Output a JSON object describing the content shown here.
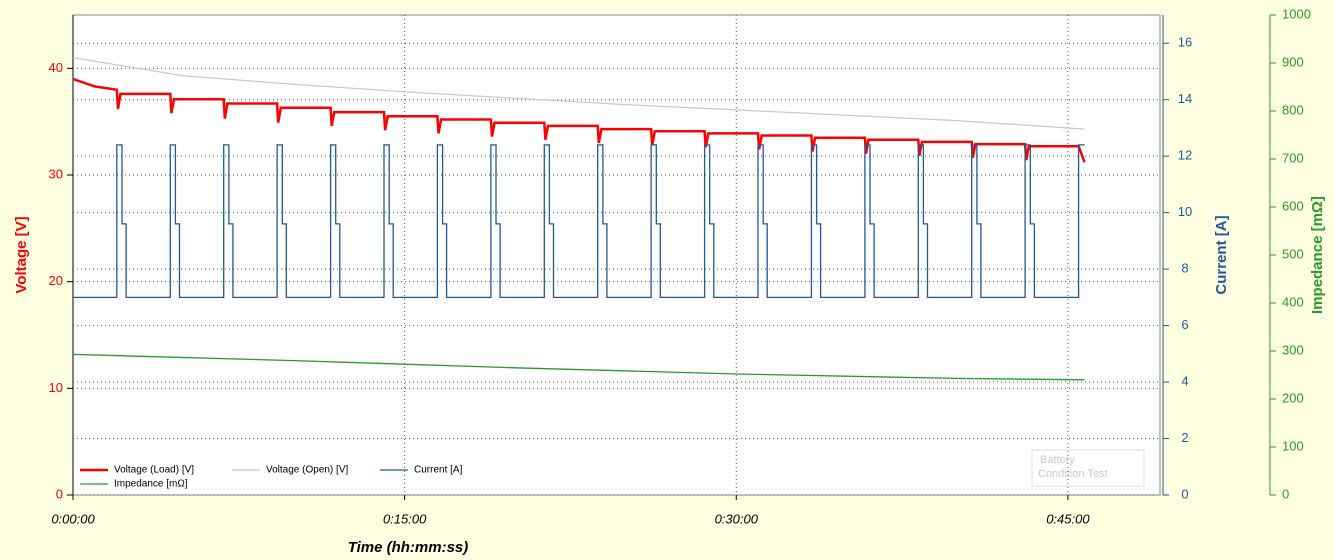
{
  "chart_data": {
    "type": "line",
    "xlabel": "Time (hh:mm:ss)",
    "ylabel": "Voltage [V]",
    "y2label": "Current [A]",
    "y3label": "Impedance [mΩ]",
    "xlim": [
      0,
      2950
    ],
    "xticks": [
      {
        "value": 0,
        "label": "0:00:00"
      },
      {
        "value": 900,
        "label": "0:15:00"
      },
      {
        "value": 1800,
        "label": "0:30:00"
      },
      {
        "value": 2700,
        "label": "0:45:00"
      }
    ],
    "ylim": [
      0,
      45
    ],
    "yticks": [
      0,
      10,
      20,
      30,
      40
    ],
    "y2lim": [
      0,
      17
    ],
    "y2ticks": [
      0,
      2,
      4,
      6,
      8,
      10,
      12,
      14,
      16
    ],
    "y3lim": [
      0,
      1000
    ],
    "y3ticks": [
      0,
      100,
      200,
      300,
      400,
      500,
      600,
      700,
      800,
      900,
      1000
    ],
    "grid": true,
    "legend": "lower left",
    "watermark": [
      "Battery",
      "Condition Test"
    ],
    "series": [
      {
        "name": "Voltage (Load) [V]",
        "color": "#ff0000",
        "x": [
          0,
          60,
          119,
          122,
          129,
          264,
          267,
          274,
          409,
          412,
          419,
          554,
          557,
          564,
          699,
          702,
          709,
          844,
          847,
          854,
          989,
          992,
          999,
          1134,
          1137,
          1144,
          1279,
          1282,
          1289,
          1424,
          1427,
          1434,
          1569,
          1572,
          1579,
          1714,
          1717,
          1724,
          1859,
          1862,
          1869,
          2004,
          2007,
          2014,
          2149,
          2152,
          2159,
          2294,
          2297,
          2304,
          2439,
          2442,
          2449,
          2584,
          2587,
          2594,
          2729,
          2745
        ],
        "values": [
          39,
          38.3,
          38.0,
          36.2,
          37.6,
          37.6,
          35.8,
          37.1,
          37.1,
          35.3,
          36.7,
          36.7,
          34.9,
          36.3,
          36.3,
          34.6,
          35.9,
          35.9,
          34.2,
          35.5,
          35.5,
          33.9,
          35.2,
          35.2,
          33.6,
          34.9,
          34.9,
          33.3,
          34.6,
          34.6,
          33.0,
          34.3,
          34.3,
          32.8,
          34.1,
          34.1,
          32.6,
          33.9,
          33.9,
          32.4,
          33.7,
          33.7,
          32.2,
          33.5,
          33.5,
          32.0,
          33.3,
          33.3,
          31.8,
          33.1,
          33.1,
          31.6,
          32.9,
          32.9,
          31.4,
          32.7,
          32.7,
          31.2
        ]
      },
      {
        "name": "Voltage (Open) [V]",
        "color": "#c8c8c8",
        "x": [
          0,
          300,
          600,
          900,
          1200,
          1500,
          1800,
          2100,
          2400,
          2745
        ],
        "values": [
          41,
          39.3,
          38.5,
          37.8,
          37.2,
          36.6,
          36.1,
          35.6,
          35.1,
          34.3
        ]
      },
      {
        "name": "Current [A]",
        "color": "#1f5a96",
        "axis": "y2",
        "x": [
          0,
          119,
          119,
          133,
          133,
          144,
          144,
          264,
          264,
          278,
          278,
          289,
          289,
          409,
          409,
          423,
          423,
          434,
          434,
          554,
          554,
          568,
          568,
          579,
          579,
          699,
          699,
          713,
          713,
          724,
          724,
          844,
          844,
          858,
          858,
          869,
          869,
          989,
          989,
          1003,
          1003,
          1014,
          1014,
          1134,
          1134,
          1148,
          1148,
          1159,
          1159,
          1279,
          1279,
          1293,
          1293,
          1304,
          1304,
          1424,
          1424,
          1438,
          1438,
          1449,
          1449,
          1569,
          1569,
          1583,
          1583,
          1594,
          1594,
          1714,
          1714,
          1728,
          1728,
          1739,
          1739,
          1859,
          1859,
          1873,
          1873,
          1884,
          1884,
          2004,
          2004,
          2018,
          2018,
          2029,
          2029,
          2149,
          2149,
          2163,
          2163,
          2174,
          2174,
          2294,
          2294,
          2308,
          2308,
          2319,
          2319,
          2439,
          2439,
          2453,
          2453,
          2464,
          2464,
          2584,
          2584,
          2598,
          2598,
          2609,
          2609,
          2729,
          2729,
          2745
        ],
        "values": [
          7,
          7,
          12.4,
          12.4,
          9.6,
          9.6,
          7,
          7,
          12.4,
          12.4,
          9.6,
          9.6,
          7,
          7,
          12.4,
          12.4,
          9.6,
          9.6,
          7,
          7,
          12.4,
          12.4,
          9.6,
          9.6,
          7,
          7,
          12.4,
          12.4,
          9.6,
          9.6,
          7,
          7,
          12.4,
          12.4,
          9.6,
          9.6,
          7,
          7,
          12.4,
          12.4,
          9.6,
          9.6,
          7,
          7,
          12.4,
          12.4,
          9.6,
          9.6,
          7,
          7,
          12.4,
          12.4,
          9.6,
          9.6,
          7,
          7,
          12.4,
          12.4,
          9.6,
          9.6,
          7,
          7,
          12.4,
          12.4,
          9.6,
          9.6,
          7,
          7,
          12.4,
          12.4,
          9.6,
          9.6,
          7,
          7,
          12.4,
          12.4,
          9.6,
          9.6,
          7,
          7,
          12.4,
          12.4,
          9.6,
          9.6,
          7,
          7,
          12.4,
          12.4,
          9.6,
          9.6,
          7,
          7,
          12.4,
          12.4,
          9.6,
          9.6,
          7,
          7,
          12.4,
          12.4,
          9.6,
          9.6,
          7,
          7,
          12.4,
          12.4,
          9.6,
          9.6,
          7,
          7,
          12.4,
          12.4
        ]
      },
      {
        "name": "Impedance [mΩ]",
        "color": "#2a9a2a",
        "axis": "y3",
        "x": [
          0,
          600,
          1200,
          1800,
          2400,
          2745
        ],
        "values": [
          293,
          280,
          265,
          252,
          243,
          240
        ]
      }
    ]
  }
}
